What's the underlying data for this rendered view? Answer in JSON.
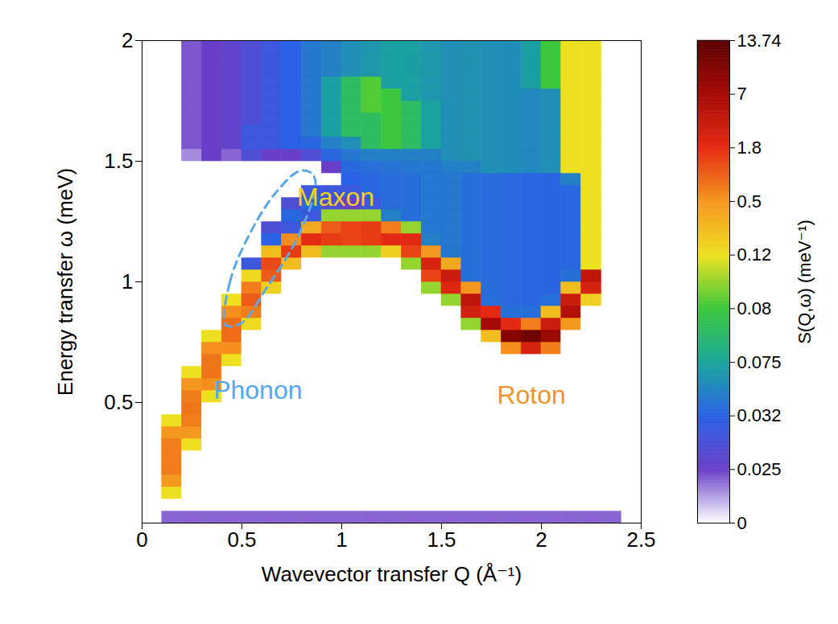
{
  "chart_data": {
    "type": "heatmap",
    "x_label": "Wavevector transfer Q (Å⁻¹)",
    "y_label": "Energy transfer ω (meV)",
    "xlim": [
      0,
      2.5
    ],
    "ylim": [
      0,
      2
    ],
    "xticks": [
      0,
      0.5,
      1,
      1.5,
      2,
      2.5
    ],
    "yticks": [
      0.5,
      1,
      1.5,
      2
    ],
    "x_bins": [
      0.1,
      0.2,
      0.3,
      0.4,
      0.5,
      0.6,
      0.7,
      0.8,
      0.9,
      1.0,
      1.1,
      1.2,
      1.3,
      1.4,
      1.5,
      1.6,
      1.7,
      1.8,
      1.9,
      2.0,
      2.1,
      2.2,
      2.3,
      2.4
    ],
    "y_bins": [
      0,
      0.05,
      0.1,
      0.15,
      0.2,
      0.25,
      0.3,
      0.35,
      0.4,
      0.45,
      0.5,
      0.55,
      0.6,
      0.65,
      0.7,
      0.75,
      0.8,
      0.85,
      0.9,
      0.95,
      1.0,
      1.05,
      1.1,
      1.15,
      1.2,
      1.25,
      1.3,
      1.35,
      1.4,
      1.45,
      1.5,
      1.55,
      1.6,
      1.65,
      1.7,
      1.75,
      1.8,
      1.85,
      1.9,
      1.95,
      2.0
    ],
    "cells": [
      [
        0.02,
        0,
        0.12,
        0.5,
        0.8,
        0.8,
        0.8,
        0.5,
        0.12,
        0,
        0,
        0,
        0,
        0,
        0,
        0,
        0,
        0,
        0,
        0,
        0,
        0,
        0,
        0,
        0,
        0,
        0,
        0,
        0,
        0,
        0,
        0,
        0,
        0,
        0,
        0,
        0,
        0,
        0,
        0
      ],
      [
        0.02,
        0,
        0,
        0,
        0,
        0,
        0.12,
        0.5,
        0.8,
        0.9,
        0.8,
        0.5,
        0.12,
        0,
        0,
        0,
        0,
        0,
        0,
        0,
        0,
        0,
        0,
        0,
        0,
        0,
        0,
        0,
        0,
        0,
        0.015,
        0.022,
        0.022,
        0.022,
        0.022,
        0.022,
        0.022,
        0.022,
        0.022,
        0.022
      ],
      [
        0.02,
        0,
        0,
        0,
        0,
        0,
        0,
        0,
        0,
        0,
        0.12,
        0.6,
        0.9,
        0.9,
        0.6,
        0.12,
        0,
        0,
        0,
        0,
        0,
        0,
        0,
        0,
        0,
        0,
        0,
        0,
        0,
        0,
        0.025,
        0.025,
        0.025,
        0.025,
        0.025,
        0.025,
        0.025,
        0.025,
        0.025,
        0.025
      ],
      [
        0.02,
        0,
        0,
        0,
        0,
        0,
        0,
        0,
        0,
        0,
        0,
        0,
        0,
        0.12,
        0.6,
        1.0,
        1.0,
        0.6,
        0.12,
        0,
        0,
        0,
        0,
        0,
        0,
        0,
        0,
        0,
        0,
        0,
        0.02,
        0.026,
        0.026,
        0.026,
        0.026,
        0.026,
        0.026,
        0.026,
        0.026,
        0.026
      ],
      [
        0.02,
        0,
        0,
        0,
        0,
        0,
        0,
        0,
        0,
        0,
        0,
        0,
        0,
        0,
        0,
        0,
        0.15,
        0.8,
        1.2,
        0.8,
        0.15,
        0.03,
        0,
        0,
        0,
        0,
        0,
        0,
        0,
        0,
        0.028,
        0.03,
        0.03,
        0.028,
        0.028,
        0.028,
        0.028,
        0.028,
        0.028,
        0.028
      ],
      [
        0.02,
        0,
        0,
        0,
        0,
        0,
        0,
        0,
        0,
        0,
        0,
        0,
        0,
        0,
        0,
        0,
        0,
        0,
        0,
        0.2,
        1.2,
        1.4,
        0.3,
        0.032,
        0.028,
        0,
        0,
        0,
        0,
        0,
        0.025,
        0.03,
        0.03,
        0.03,
        0.03,
        0.03,
        0.03,
        0.03,
        0.03,
        0.03
      ],
      [
        0.02,
        0,
        0,
        0,
        0,
        0,
        0,
        0,
        0,
        0,
        0,
        0,
        0,
        0,
        0,
        0,
        0,
        0,
        0,
        0,
        0,
        0.3,
        1.6,
        0.6,
        0.03,
        0.035,
        0.028,
        0,
        0,
        0,
        0.025,
        0.032,
        0.032,
        0.032,
        0.032,
        0.032,
        0.032,
        0.032,
        0.032,
        0.032
      ],
      [
        0.02,
        0,
        0,
        0,
        0,
        0,
        0,
        0,
        0,
        0,
        0,
        0,
        0,
        0,
        0,
        0,
        0,
        0,
        0,
        0,
        0,
        0,
        0.3,
        1.8,
        0.4,
        0.03,
        0.035,
        0.03,
        0,
        0,
        0.028,
        0.035,
        0.045,
        0.045,
        0.045,
        0.045,
        0.045,
        0.045,
        0.045,
        0.045
      ],
      [
        0.02,
        0,
        0,
        0,
        0,
        0,
        0,
        0,
        0,
        0,
        0,
        0,
        0,
        0,
        0,
        0,
        0,
        0,
        0,
        0,
        0,
        0,
        0.1,
        1.6,
        1.2,
        0.1,
        0.028,
        0.03,
        0,
        0.025,
        0.035,
        0.05,
        0.07,
        0.07,
        0.07,
        0.07,
        0.07,
        0.05,
        0.05,
        0.05
      ],
      [
        0.02,
        0,
        0,
        0,
        0,
        0,
        0,
        0,
        0,
        0,
        0,
        0,
        0,
        0,
        0,
        0,
        0,
        0,
        0,
        0,
        0,
        0,
        0.1,
        1.5,
        1.5,
        0.1,
        0.025,
        0.03,
        0.032,
        0.035,
        0.045,
        0.06,
        0.078,
        0.078,
        0.078,
        0.078,
        0.078,
        0.06,
        0.06,
        0.06
      ],
      [
        0.02,
        0,
        0,
        0,
        0,
        0,
        0,
        0,
        0,
        0,
        0,
        0,
        0,
        0,
        0,
        0,
        0,
        0,
        0,
        0,
        0,
        0,
        0.1,
        1.6,
        1.6,
        0.1,
        0.03,
        0.035,
        0.035,
        0.04,
        0.05,
        0.078,
        0.078,
        0.078,
        0.085,
        0.085,
        0.085,
        0.065,
        0.065,
        0.065
      ],
      [
        0.02,
        0,
        0,
        0,
        0,
        0,
        0,
        0,
        0,
        0,
        0,
        0,
        0,
        0,
        0,
        0,
        0,
        0,
        0,
        0,
        0,
        0,
        0.2,
        2.0,
        0.8,
        0.05,
        0.038,
        0.038,
        0.038,
        0.042,
        0.05,
        0.08,
        0.08,
        0.08,
        0.08,
        0.08,
        0.07,
        0.07,
        0.07,
        0.07
      ],
      [
        0.02,
        0,
        0,
        0,
        0,
        0,
        0,
        0,
        0,
        0,
        0,
        0,
        0,
        0,
        0,
        0,
        0,
        0,
        0,
        0,
        0,
        0.1,
        1.5,
        2.0,
        0.1,
        0.04,
        0.04,
        0.04,
        0.04,
        0.045,
        0.05,
        0.078,
        0.078,
        0.078,
        0.078,
        0.07,
        0.07,
        0.07,
        0.07,
        0.07
      ],
      [
        0.02,
        0,
        0,
        0,
        0,
        0,
        0,
        0,
        0,
        0,
        0,
        0,
        0,
        0,
        0,
        0,
        0,
        0,
        0,
        0.1,
        1.5,
        3.0,
        0.5,
        0.05,
        0.045,
        0.045,
        0.045,
        0.045,
        0.045,
        0.045,
        0.05,
        0.072,
        0.072,
        0.072,
        0.072,
        0.065,
        0.065,
        0.065,
        0.065,
        0.065
      ],
      [
        0.02,
        0,
        0,
        0,
        0,
        0,
        0,
        0,
        0,
        0,
        0,
        0,
        0,
        0,
        0,
        0,
        0,
        0,
        0.1,
        2.5,
        4.0,
        0.4,
        0.045,
        0.045,
        0.045,
        0.045,
        0.045,
        0.045,
        0.045,
        0.05,
        0.06,
        0.06,
        0.06,
        0.06,
        0.06,
        0.06,
        0.06,
        0.06,
        0.06,
        0.06
      ],
      [
        0.02,
        0,
        0,
        0,
        0,
        0,
        0,
        0,
        0,
        0,
        0,
        0,
        0,
        0,
        0,
        0,
        0.1,
        3.5,
        5.0,
        0.5,
        0.04,
        0.04,
        0.04,
        0.04,
        0.04,
        0.04,
        0.04,
        0.04,
        0.04,
        0.05,
        0.062,
        0.062,
        0.062,
        0.062,
        0.062,
        0.062,
        0.062,
        0.062,
        0.062,
        0.062
      ],
      [
        0.02,
        0,
        0,
        0,
        0,
        0,
        0,
        0,
        0,
        0,
        0,
        0,
        0,
        0,
        0,
        0.3,
        7.0,
        2.0,
        0.04,
        0.038,
        0.038,
        0.038,
        0.038,
        0.038,
        0.038,
        0.038,
        0.038,
        0.038,
        0.038,
        0.06,
        0.06,
        0.06,
        0.06,
        0.06,
        0.06,
        0.06,
        0.06,
        0.06,
        0.06,
        0.06
      ],
      [
        0.02,
        0,
        0,
        0,
        0,
        0,
        0,
        0,
        0,
        0,
        0,
        0,
        0,
        0,
        0.6,
        10,
        2.0,
        0.04,
        0.036,
        0.036,
        0.036,
        0.036,
        0.036,
        0.036,
        0.036,
        0.036,
        0.036,
        0.036,
        0.036,
        0.058,
        0.058,
        0.058,
        0.058,
        0.058,
        0.058,
        0.058,
        0.058,
        0.058,
        0.058,
        0.058
      ],
      [
        0.02,
        0,
        0,
        0,
        0,
        0,
        0,
        0,
        0,
        0,
        0,
        0,
        0,
        0,
        3.0,
        12,
        0.8,
        0.04,
        0.035,
        0.035,
        0.035,
        0.035,
        0.035,
        0.035,
        0.035,
        0.035,
        0.035,
        0.035,
        0.035,
        0.055,
        0.055,
        0.055,
        0.055,
        0.055,
        0.055,
        0.055,
        0.07,
        0.07,
        0.07,
        0.07
      ],
      [
        0.02,
        0,
        0,
        0,
        0,
        0,
        0,
        0,
        0,
        0,
        0,
        0,
        0,
        0,
        0.8,
        8,
        4,
        0.3,
        0.04,
        0.034,
        0.034,
        0.034,
        0.034,
        0.034,
        0.034,
        0.034,
        0.034,
        0.034,
        0.034,
        0.06,
        0.06,
        0.06,
        0.06,
        0.06,
        0.06,
        0.06,
        0.08,
        0.08,
        0.08,
        0.08
      ],
      [
        0.02,
        0,
        0,
        0,
        0,
        0,
        0,
        0,
        0,
        0,
        0,
        0,
        0,
        0,
        0,
        0,
        0.5,
        6.0,
        4.0,
        0.3,
        0.04,
        0.035,
        0.035,
        0.035,
        0.035,
        0.035,
        0.035,
        0.035,
        0.05,
        0.12,
        0.12,
        0.12,
        0.12,
        0.12,
        0.12,
        0.12,
        0.12,
        0.12,
        0.12,
        0.12
      ],
      [
        0.02,
        0,
        0,
        0,
        0,
        0,
        0,
        0,
        0,
        0,
        0,
        0,
        0,
        0,
        0,
        0,
        0,
        0,
        0.2,
        3.0,
        5.0,
        0.12,
        0.12,
        0.12,
        0.12,
        0.12,
        0.12,
        0.12,
        0.12,
        0.12,
        0.12,
        0.12,
        0.12,
        0.12,
        0.12,
        0.12,
        0.12,
        0.12,
        0.12,
        0.12
      ],
      [
        0.02,
        0,
        0,
        0,
        0,
        0,
        0,
        0,
        0,
        0,
        0,
        0,
        0,
        null,
        null,
        null,
        null,
        null,
        null,
        null,
        null,
        null,
        null,
        null,
        null,
        null,
        null,
        null,
        null,
        null,
        null,
        null,
        null,
        null,
        null,
        null,
        null,
        null,
        null,
        null
      ]
    ],
    "colorbar": {
      "label": "S(Q,ω) (meV⁻¹)",
      "ticks": [
        0,
        0.025,
        0.032,
        0.075,
        0.08,
        0.12,
        0.5,
        1.8,
        7,
        13.74
      ],
      "colors": [
        "#ffffff",
        "#6a3fc8",
        "#2a62e6",
        "#1aa79a",
        "#3cc83c",
        "#eee020",
        "#f5961e",
        "#e52a12",
        "#a60a06",
        "#5c0000"
      ]
    },
    "annotations": [
      {
        "text": "Maxon",
        "x": 0.97,
        "y": 1.35,
        "color": "#f2d21b"
      },
      {
        "text": "Phonon",
        "x": 0.58,
        "y": 0.55,
        "color": "#53a8f0"
      },
      {
        "text": "Roton",
        "x": 1.95,
        "y": 0.53,
        "color": "#f0932b"
      }
    ],
    "outline": {
      "x": [
        0.42,
        0.44,
        0.54,
        0.67,
        0.79,
        0.85,
        0.87,
        0.77,
        0.62,
        0.5
      ],
      "y": [
        0.82,
        1.0,
        1.2,
        1.37,
        1.46,
        1.45,
        1.4,
        1.17,
        0.97,
        0.83
      ],
      "color": "#5aa9e6",
      "line_style": "dashed"
    }
  }
}
